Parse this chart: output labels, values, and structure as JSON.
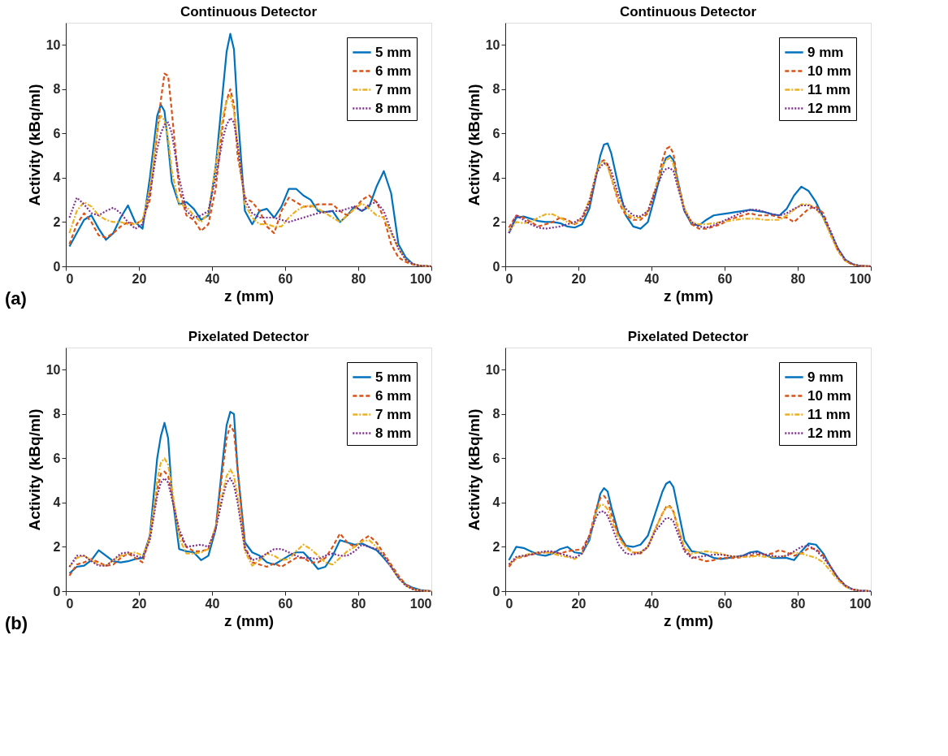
{
  "chart_data": [
    {
      "type": "line",
      "title": "Continuous Detector",
      "xlabel": "z (mm)",
      "ylabel": "Activity (kBq/ml)",
      "annotations": [
        "(a)"
      ],
      "legend": "top right",
      "grid": false,
      "xlim": [
        0,
        100
      ],
      "xticks": [
        0,
        20,
        40,
        60,
        80,
        100
      ],
      "ylim": [
        0,
        11
      ],
      "yticks": [
        0,
        2,
        4,
        6,
        8,
        10
      ],
      "x": [
        1,
        3,
        5,
        7,
        9,
        11,
        13,
        15,
        17,
        19,
        21,
        23,
        25,
        26,
        27,
        28,
        29,
        31,
        33,
        35,
        37,
        39,
        41,
        43,
        44,
        45,
        46,
        47,
        49,
        51,
        53,
        55,
        57,
        59,
        61,
        63,
        65,
        67,
        69,
        71,
        73,
        75,
        77,
        79,
        81,
        83,
        85,
        87,
        89,
        91,
        93,
        95,
        97,
        100
      ],
      "series": [
        {
          "name": "5 mm",
          "color": "#0072bd",
          "line_style": "solid",
          "values": [
            0.9,
            1.5,
            2.1,
            2.3,
            1.7,
            1.2,
            1.5,
            2.2,
            2.75,
            2.0,
            1.7,
            4.0,
            6.8,
            7.3,
            7.0,
            5.5,
            3.8,
            2.8,
            2.9,
            2.6,
            2.1,
            2.3,
            4.5,
            8.0,
            9.7,
            10.5,
            9.8,
            7.0,
            2.5,
            1.9,
            2.5,
            2.6,
            2.2,
            2.7,
            3.5,
            3.5,
            3.2,
            3.0,
            2.5,
            2.45,
            2.5,
            2.0,
            2.3,
            2.7,
            2.5,
            2.7,
            3.6,
            4.3,
            3.3,
            1.0,
            0.4,
            0.1,
            0.02,
            0
          ]
        },
        {
          "name": "6 mm",
          "color": "#d95319",
          "line_style": "dashed",
          "values": [
            1.0,
            1.9,
            2.4,
            2.0,
            1.4,
            1.3,
            1.5,
            1.8,
            2.0,
            1.9,
            2.1,
            3.0,
            6.0,
            7.5,
            8.7,
            8.6,
            7.0,
            3.5,
            2.3,
            2.1,
            1.6,
            1.9,
            3.5,
            6.5,
            7.5,
            8.0,
            7.3,
            5.0,
            3.1,
            2.9,
            2.5,
            1.8,
            1.5,
            2.5,
            3.1,
            2.9,
            2.7,
            2.7,
            2.8,
            2.8,
            2.8,
            2.5,
            2.3,
            2.6,
            3.0,
            3.2,
            2.9,
            2.2,
            1.0,
            0.4,
            0.2,
            0.08,
            0.02,
            0
          ]
        },
        {
          "name": "7 mm",
          "color": "#edb120",
          "line_style": "dashdot",
          "values": [
            1.5,
            2.5,
            2.9,
            2.7,
            2.3,
            2.1,
            2.0,
            2.0,
            1.9,
            1.9,
            2.1,
            3.5,
            6.2,
            6.8,
            6.6,
            5.8,
            4.3,
            2.8,
            2.7,
            2.3,
            2.0,
            2.4,
            4.5,
            6.8,
            7.5,
            7.7,
            7.0,
            5.5,
            2.8,
            2.2,
            1.9,
            1.9,
            1.8,
            1.8,
            2.2,
            2.5,
            2.7,
            2.75,
            2.6,
            2.4,
            2.2,
            2.0,
            2.3,
            2.6,
            2.85,
            2.6,
            2.3,
            2.2,
            1.5,
            0.8,
            0.3,
            0.1,
            0.03,
            0
          ]
        },
        {
          "name": "8 mm",
          "color": "#7e2f8e",
          "line_style": "dotted",
          "values": [
            2.2,
            3.1,
            2.8,
            2.4,
            2.3,
            2.5,
            2.65,
            2.4,
            2.0,
            1.7,
            1.9,
            3.3,
            5.3,
            6.0,
            6.4,
            6.5,
            6.0,
            4.0,
            2.5,
            2.2,
            2.3,
            2.5,
            4.0,
            5.8,
            6.4,
            6.7,
            6.5,
            5.5,
            3.0,
            2.4,
            2.2,
            2.2,
            2.2,
            2.1,
            2.0,
            2.1,
            2.2,
            2.3,
            2.4,
            2.45,
            2.5,
            2.5,
            2.6,
            2.7,
            2.5,
            2.8,
            2.9,
            2.5,
            1.6,
            0.8,
            0.3,
            0.1,
            0.03,
            0
          ]
        }
      ]
    },
    {
      "type": "line",
      "title": "Continuous Detector",
      "xlabel": "z (mm)",
      "ylabel": "Activity (kBq/ml)",
      "legend": "top right",
      "grid": false,
      "xlim": [
        0,
        100
      ],
      "xticks": [
        0,
        20,
        40,
        60,
        80,
        100
      ],
      "ylim": [
        0,
        11
      ],
      "yticks": [
        0,
        2,
        4,
        6,
        8,
        10
      ],
      "x": [
        1,
        3,
        5,
        7,
        9,
        11,
        13,
        15,
        17,
        19,
        21,
        23,
        25,
        26,
        27,
        28,
        29,
        31,
        33,
        35,
        37,
        39,
        41,
        43,
        44,
        45,
        46,
        47,
        49,
        51,
        53,
        55,
        57,
        59,
        61,
        63,
        65,
        67,
        69,
        71,
        73,
        75,
        77,
        79,
        81,
        83,
        85,
        87,
        89,
        91,
        93,
        95,
        97,
        100
      ],
      "series": [
        {
          "name": "9 mm",
          "color": "#0072bd",
          "line_style": "solid",
          "values": [
            1.5,
            2.2,
            2.25,
            2.15,
            2.05,
            2.0,
            2.0,
            1.95,
            1.8,
            1.75,
            1.9,
            2.6,
            4.2,
            5.0,
            5.5,
            5.55,
            5.1,
            3.6,
            2.3,
            1.8,
            1.7,
            2.0,
            3.2,
            4.5,
            4.9,
            5.0,
            4.8,
            4.0,
            2.5,
            1.9,
            1.85,
            2.1,
            2.3,
            2.35,
            2.4,
            2.45,
            2.5,
            2.55,
            2.5,
            2.45,
            2.35,
            2.3,
            2.6,
            3.2,
            3.6,
            3.4,
            2.9,
            2.2,
            1.5,
            0.8,
            0.3,
            0.1,
            0.02,
            0
          ]
        },
        {
          "name": "10 mm",
          "color": "#d95319",
          "line_style": "dashed",
          "values": [
            1.75,
            2.3,
            2.2,
            2.0,
            1.8,
            1.9,
            2.0,
            2.2,
            2.1,
            1.9,
            2.1,
            2.8,
            4.2,
            4.7,
            4.8,
            4.6,
            4.0,
            2.9,
            2.3,
            2.1,
            2.1,
            2.4,
            3.4,
            4.8,
            5.3,
            5.4,
            5.1,
            4.0,
            2.6,
            1.9,
            1.7,
            1.7,
            1.8,
            1.9,
            2.1,
            2.2,
            2.3,
            2.4,
            2.3,
            2.3,
            2.3,
            2.2,
            2.2,
            2.0,
            2.3,
            2.6,
            2.7,
            2.4,
            1.5,
            0.7,
            0.25,
            0.08,
            0.02,
            0
          ]
        },
        {
          "name": "11 mm",
          "color": "#edb120",
          "line_style": "dashdot",
          "values": [
            1.6,
            2.0,
            1.95,
            2.0,
            2.2,
            2.35,
            2.35,
            2.2,
            2.0,
            1.9,
            2.2,
            3.0,
            4.3,
            4.7,
            4.7,
            4.5,
            4.0,
            3.0,
            2.4,
            2.2,
            2.2,
            2.5,
            3.5,
            4.5,
            4.8,
            4.9,
            4.6,
            3.8,
            2.6,
            2.0,
            1.9,
            1.9,
            1.95,
            2.0,
            2.05,
            2.1,
            2.15,
            2.15,
            2.15,
            2.1,
            2.1,
            2.1,
            2.3,
            2.55,
            2.8,
            2.8,
            2.6,
            2.2,
            1.4,
            0.7,
            0.25,
            0.08,
            0.02,
            0
          ]
        },
        {
          "name": "12 mm",
          "color": "#7e2f8e",
          "line_style": "dotted",
          "values": [
            1.5,
            2.3,
            2.1,
            1.9,
            1.75,
            1.7,
            1.75,
            1.8,
            1.9,
            2.0,
            2.2,
            2.9,
            4.2,
            4.5,
            4.65,
            4.6,
            4.3,
            3.2,
            2.6,
            2.3,
            2.25,
            2.5,
            3.4,
            4.2,
            4.4,
            4.45,
            4.3,
            3.7,
            2.5,
            2.0,
            1.8,
            1.75,
            1.85,
            2.0,
            2.15,
            2.3,
            2.45,
            2.55,
            2.55,
            2.45,
            2.35,
            2.3,
            2.4,
            2.6,
            2.75,
            2.75,
            2.6,
            2.3,
            1.6,
            0.8,
            0.3,
            0.1,
            0.02,
            0
          ]
        }
      ]
    },
    {
      "type": "line",
      "title": "Pixelated Detector",
      "xlabel": "z (mm)",
      "ylabel": "Activity (kBq/ml)",
      "annotations": [
        "(b)"
      ],
      "legend": "top right",
      "grid": false,
      "xlim": [
        0,
        100
      ],
      "xticks": [
        0,
        20,
        40,
        60,
        80,
        100
      ],
      "ylim": [
        0,
        11
      ],
      "yticks": [
        0,
        2,
        4,
        6,
        8,
        10
      ],
      "x": [
        1,
        3,
        5,
        7,
        9,
        11,
        13,
        15,
        17,
        19,
        21,
        23,
        25,
        26,
        27,
        28,
        29,
        31,
        33,
        35,
        37,
        39,
        41,
        43,
        44,
        45,
        46,
        47,
        49,
        51,
        53,
        55,
        57,
        59,
        61,
        63,
        65,
        67,
        69,
        71,
        73,
        75,
        77,
        79,
        81,
        83,
        85,
        87,
        89,
        91,
        93,
        95,
        97,
        100
      ],
      "series": [
        {
          "name": "5 mm",
          "color": "#0072bd",
          "line_style": "solid",
          "values": [
            0.8,
            1.1,
            1.15,
            1.4,
            1.85,
            1.6,
            1.35,
            1.3,
            1.35,
            1.45,
            1.5,
            2.5,
            6.0,
            7.0,
            7.6,
            6.9,
            4.5,
            1.9,
            1.8,
            1.75,
            1.4,
            1.6,
            2.8,
            6.0,
            7.5,
            8.1,
            8.0,
            5.5,
            2.2,
            1.75,
            1.6,
            1.3,
            1.2,
            1.4,
            1.6,
            1.75,
            1.75,
            1.4,
            1.0,
            1.1,
            1.6,
            2.3,
            2.2,
            2.1,
            2.15,
            2.0,
            1.85,
            1.5,
            1.1,
            0.6,
            0.3,
            0.15,
            0.05,
            0
          ]
        },
        {
          "name": "6 mm",
          "color": "#d95319",
          "line_style": "dashed",
          "values": [
            0.7,
            1.2,
            1.3,
            1.45,
            1.3,
            1.15,
            1.2,
            1.5,
            1.7,
            1.5,
            1.3,
            2.5,
            4.6,
            5.3,
            5.4,
            5.2,
            4.4,
            2.6,
            2.0,
            1.8,
            1.8,
            1.9,
            2.9,
            5.6,
            6.9,
            7.5,
            7.2,
            5.5,
            2.0,
            1.3,
            1.2,
            1.1,
            1.25,
            1.1,
            1.3,
            1.5,
            1.5,
            1.3,
            1.3,
            1.5,
            2.0,
            2.6,
            2.2,
            2.0,
            2.3,
            2.5,
            2.2,
            1.7,
            1.2,
            0.7,
            0.3,
            0.1,
            0.03,
            0
          ]
        },
        {
          "name": "7 mm",
          "color": "#edb120",
          "line_style": "dashdot",
          "values": [
            1.1,
            1.5,
            1.6,
            1.4,
            1.2,
            1.15,
            1.4,
            1.6,
            1.7,
            1.75,
            1.6,
            2.4,
            5.0,
            5.8,
            6.0,
            5.7,
            4.7,
            2.4,
            1.7,
            1.7,
            1.75,
            1.9,
            2.9,
            4.5,
            5.2,
            5.5,
            5.2,
            4.3,
            1.8,
            1.15,
            1.4,
            1.7,
            1.6,
            1.4,
            1.45,
            1.8,
            2.1,
            1.9,
            1.6,
            1.3,
            1.2,
            1.5,
            1.8,
            2.0,
            2.25,
            2.3,
            2.0,
            1.6,
            1.1,
            0.6,
            0.25,
            0.08,
            0.02,
            0
          ]
        },
        {
          "name": "8 mm",
          "color": "#7e2f8e",
          "line_style": "dotted",
          "values": [
            1.1,
            1.6,
            1.6,
            1.35,
            1.15,
            1.15,
            1.4,
            1.7,
            1.75,
            1.6,
            1.5,
            2.3,
            4.3,
            4.9,
            5.1,
            4.9,
            4.2,
            2.8,
            2.0,
            2.05,
            2.1,
            2.0,
            2.8,
            4.3,
            4.9,
            5.1,
            4.8,
            4.0,
            1.9,
            1.4,
            1.5,
            1.7,
            1.9,
            1.9,
            1.75,
            1.6,
            1.5,
            1.5,
            1.45,
            1.6,
            1.7,
            1.6,
            1.6,
            1.8,
            2.1,
            2.0,
            1.9,
            1.6,
            1.1,
            0.6,
            0.25,
            0.08,
            0.02,
            0
          ]
        }
      ]
    },
    {
      "type": "line",
      "title": "Pixelated Detector",
      "xlabel": "z (mm)",
      "ylabel": "Activity (kBq/ml)",
      "legend": "top right",
      "grid": false,
      "xlim": [
        0,
        100
      ],
      "xticks": [
        0,
        20,
        40,
        60,
        80,
        100
      ],
      "ylim": [
        0,
        11
      ],
      "yticks": [
        0,
        2,
        4,
        6,
        8,
        10
      ],
      "x": [
        1,
        3,
        5,
        7,
        9,
        11,
        13,
        15,
        17,
        19,
        21,
        23,
        25,
        26,
        27,
        28,
        29,
        31,
        33,
        35,
        37,
        39,
        41,
        43,
        44,
        45,
        46,
        47,
        49,
        51,
        53,
        55,
        57,
        59,
        61,
        63,
        65,
        67,
        69,
        71,
        73,
        75,
        77,
        79,
        81,
        83,
        85,
        87,
        89,
        91,
        93,
        95,
        97,
        100
      ],
      "series": [
        {
          "name": "9 mm",
          "color": "#0072bd",
          "line_style": "solid",
          "values": [
            1.4,
            2.0,
            1.95,
            1.8,
            1.65,
            1.6,
            1.7,
            1.9,
            2.0,
            1.75,
            1.7,
            2.3,
            3.7,
            4.4,
            4.65,
            4.5,
            3.8,
            2.6,
            2.05,
            2.0,
            2.1,
            2.5,
            3.5,
            4.5,
            4.85,
            4.95,
            4.7,
            3.9,
            2.3,
            1.8,
            1.75,
            1.65,
            1.5,
            1.45,
            1.5,
            1.55,
            1.6,
            1.75,
            1.8,
            1.65,
            1.5,
            1.5,
            1.5,
            1.4,
            1.8,
            2.15,
            2.1,
            1.7,
            1.1,
            0.6,
            0.25,
            0.08,
            0.02,
            0
          ]
        },
        {
          "name": "10 mm",
          "color": "#d95319",
          "line_style": "dashed",
          "values": [
            1.1,
            1.5,
            1.55,
            1.65,
            1.7,
            1.75,
            1.75,
            1.7,
            1.8,
            1.85,
            1.9,
            2.5,
            3.8,
            4.2,
            4.3,
            4.1,
            3.5,
            2.5,
            2.0,
            1.75,
            1.7,
            2.0,
            2.8,
            3.5,
            3.8,
            3.85,
            3.6,
            3.0,
            1.9,
            1.55,
            1.45,
            1.35,
            1.4,
            1.5,
            1.5,
            1.5,
            1.55,
            1.6,
            1.65,
            1.65,
            1.7,
            1.85,
            1.75,
            1.6,
            1.7,
            1.95,
            1.9,
            1.6,
            1.1,
            0.6,
            0.25,
            0.08,
            0.02,
            0
          ]
        },
        {
          "name": "11 mm",
          "color": "#edb120",
          "line_style": "dashdot",
          "values": [
            1.2,
            1.5,
            1.6,
            1.7,
            1.75,
            1.75,
            1.7,
            1.6,
            1.55,
            1.45,
            1.7,
            2.4,
            3.6,
            3.9,
            3.9,
            3.7,
            3.2,
            2.4,
            1.95,
            1.75,
            1.75,
            2.0,
            2.8,
            3.5,
            3.8,
            3.8,
            3.6,
            3.0,
            2.0,
            1.7,
            1.75,
            1.8,
            1.75,
            1.7,
            1.6,
            1.55,
            1.55,
            1.55,
            1.6,
            1.55,
            1.55,
            1.55,
            1.6,
            1.75,
            1.7,
            1.6,
            1.5,
            1.3,
            0.9,
            0.5,
            0.2,
            0.08,
            0.02,
            0
          ]
        },
        {
          "name": "12 mm",
          "color": "#7e2f8e",
          "line_style": "dotted",
          "values": [
            1.2,
            1.55,
            1.6,
            1.65,
            1.75,
            1.8,
            1.8,
            1.7,
            1.6,
            1.5,
            1.7,
            2.5,
            3.4,
            3.6,
            3.6,
            3.4,
            3.0,
            2.1,
            1.7,
            1.65,
            1.75,
            2.0,
            2.7,
            3.1,
            3.3,
            3.3,
            3.15,
            2.7,
            1.8,
            1.5,
            1.55,
            1.6,
            1.65,
            1.65,
            1.6,
            1.55,
            1.6,
            1.7,
            1.75,
            1.65,
            1.6,
            1.55,
            1.6,
            1.8,
            2.0,
            2.05,
            1.85,
            1.5,
            1.1,
            0.6,
            0.25,
            0.08,
            0.02,
            0
          ]
        }
      ]
    }
  ]
}
